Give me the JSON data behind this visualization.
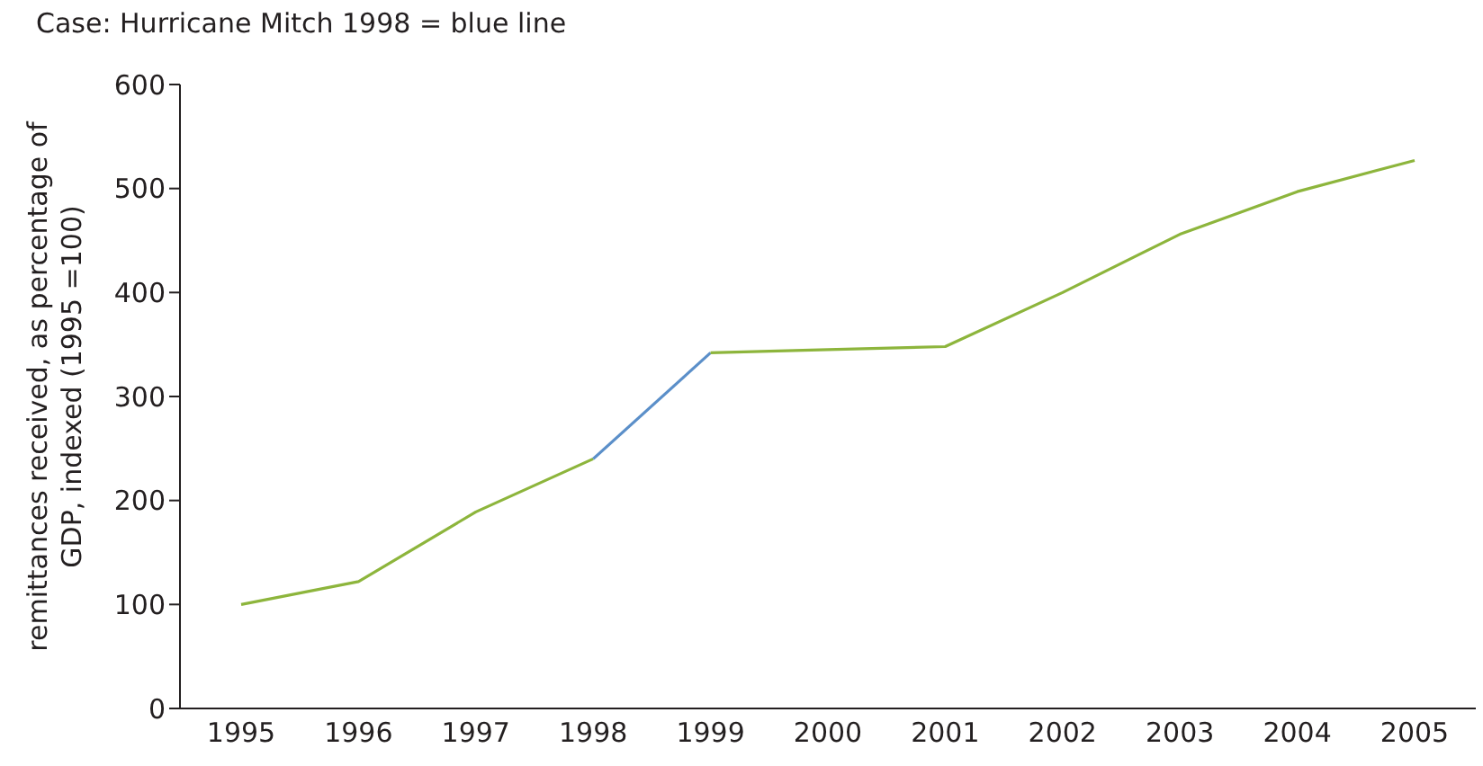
{
  "chart_data": {
    "type": "line",
    "title": "Case: Hurricane Mitch 1998 = blue line",
    "ylabel": "remittances received, as percentage of\nGDP, indexed (1995 =100)",
    "categories": [
      "1995",
      "1996",
      "1997",
      "1998",
      "1999",
      "2000",
      "2001",
      "2002",
      "2003",
      "2004",
      "2005"
    ],
    "series": [
      {
        "color": "#8db53c",
        "values": [
          100,
          122,
          189,
          240,
          null,
          null,
          null,
          null,
          null,
          null,
          null
        ]
      },
      {
        "color": "#5b8fc9",
        "values": [
          null,
          null,
          null,
          240,
          342,
          null,
          null,
          null,
          null,
          null,
          null
        ]
      },
      {
        "color": "#8db53c",
        "values": [
          null,
          null,
          null,
          null,
          342,
          345,
          348,
          400,
          456,
          497,
          527
        ]
      }
    ],
    "ylim": [
      0,
      600
    ],
    "yticks": [
      0,
      100,
      200,
      300,
      400,
      500,
      600
    ],
    "grid": false,
    "marker": "none",
    "line_style": "solid"
  }
}
